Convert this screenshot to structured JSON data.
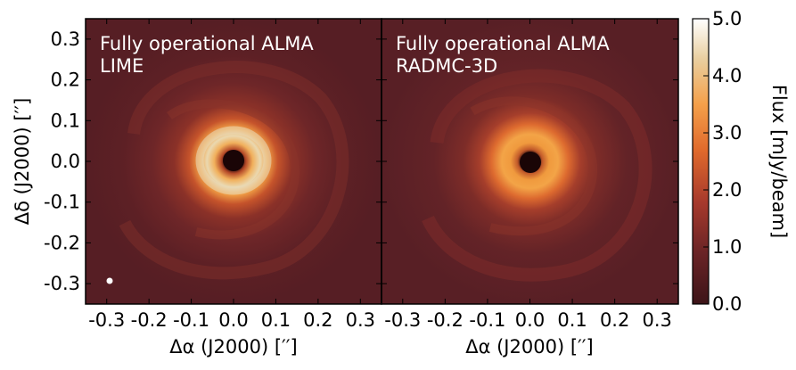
{
  "chart_data": [
    {
      "type": "heatmap",
      "panel": "left",
      "title_lines": [
        "Fully operational ALMA",
        "LIME"
      ],
      "xlabel": "Δα (J2000) [′′]",
      "ylabel": "Δδ (J2000) [′′]",
      "xlim": [
        -0.35,
        0.35
      ],
      "ylim": [
        -0.35,
        0.35
      ],
      "xticks": [
        -0.3,
        -0.2,
        -0.1,
        0.0,
        0.1,
        0.2,
        0.3
      ],
      "xtick_labels": [
        "-0.3",
        "-0.2",
        "-0.1",
        "0.0",
        "0.1",
        "0.2",
        "0.3"
      ],
      "yticks": [
        0.3,
        0.2,
        0.1,
        0.0,
        -0.1,
        -0.2,
        -0.3
      ],
      "ytick_labels": [
        "0.3",
        "0.2",
        "0.1",
        "0.0",
        "-0.1",
        "-0.2",
        "-0.3"
      ],
      "beam_marker": {
        "x": -0.295,
        "y": -0.29
      },
      "features": {
        "central_hole_radius": 0.022,
        "ring_radius": 0.075,
        "ring_peak_flux": 4.8,
        "background_flux": 0.3
      }
    },
    {
      "type": "heatmap",
      "panel": "right",
      "title_lines": [
        "Fully operational ALMA",
        "RADMC-3D"
      ],
      "xlabel": "Δα (J2000) [′′]",
      "xlim": [
        -0.35,
        0.35
      ],
      "ylim": [
        -0.35,
        0.35
      ],
      "xticks": [
        -0.3,
        -0.2,
        -0.1,
        0.0,
        0.1,
        0.2,
        0.3
      ],
      "xtick_labels": [
        "-0.3",
        "-0.2",
        "-0.1",
        "0.0",
        "0.1",
        "0.2",
        "0.3"
      ],
      "features": {
        "central_hole_radius": 0.022,
        "ring_radius": 0.07,
        "ring_peak_flux": 3.2,
        "background_flux": 0.3
      }
    }
  ],
  "colorbar": {
    "label": "Flux [mJy/beam]",
    "range": [
      0.0,
      5.0
    ],
    "ticks": [
      0.0,
      1.0,
      2.0,
      3.0,
      4.0,
      5.0
    ],
    "tick_labels": [
      "0.0",
      "1.0",
      "2.0",
      "3.0",
      "4.0",
      "5.0"
    ],
    "colormap": [
      "#3d1418",
      "#6a2426",
      "#a83a2c",
      "#e06a2c",
      "#f4a04a",
      "#f2d9a6",
      "#ffffff"
    ]
  }
}
